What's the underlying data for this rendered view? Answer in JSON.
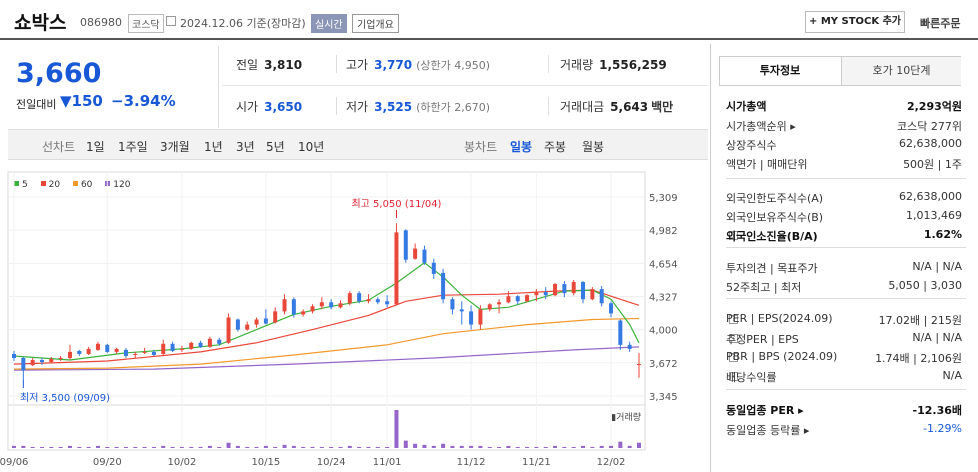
{
  "header": {
    "name": "쇼박스",
    "code": "086980",
    "market": "코스닥",
    "date": "2024.12.06 기준(장마감)",
    "realtime": "실시간",
    "overview": "기업개요",
    "mystock": "+ MY STOCK 추가",
    "quick_order": "빠른주문"
  },
  "price": {
    "current": "3,660",
    "label": "전일대비",
    "change": "▼150",
    "rate": "−3.94%"
  },
  "stats": {
    "prev_k": "전일",
    "prev_v": "3,810",
    "high_k": "고가",
    "high_v": "3,770",
    "high_limit": "(상한가 4,950)",
    "volume_k": "거래량",
    "volume_v": "1,556,259",
    "open_k": "시가",
    "open_v": "3,650",
    "low_k": "저가",
    "low_v": "3,525",
    "low_limit": "(하한가 2,670)",
    "amount_k": "거래대금",
    "amount_v": "5,643",
    "amount_unit": "백만"
  },
  "periods": {
    "label": "선차트",
    "items": [
      "1일",
      "1주일",
      "3개월",
      "1년",
      "3년",
      "5년",
      "10년"
    ],
    "candle_label": "봉차트",
    "candle_items": [
      "일봉",
      "주봉",
      "월봉"
    ],
    "candle_active": "일봉"
  },
  "chart_data": {
    "type": "candlestick",
    "legend": [
      {
        "name": "5",
        "color": "#3bb13b"
      },
      {
        "name": "20",
        "color": "#e8473a"
      },
      {
        "name": "60",
        "color": "#f2992b"
      },
      {
        "name": "120",
        "color": "#9466c9"
      }
    ],
    "y_ticks": [
      "5,309",
      "4,982",
      "4,654",
      "4,327",
      "4,000",
      "3,672",
      "3,345"
    ],
    "ylim": [
      3345,
      5309
    ],
    "x_ticks": [
      "09/06",
      "09/20",
      "10/02",
      "10/15",
      "10/24",
      "11/01",
      "11/12",
      "11/21",
      "12/02"
    ],
    "annotations": {
      "high": "최고 5,050 (11/04)",
      "low": "최저 3,500 (09/09)"
    },
    "volume_label": "거래량",
    "up_color": "#e8473a",
    "down_color": "#3579e3",
    "candles": [
      {
        "o": 3760,
        "h": 3790,
        "l": 3690,
        "c": 3720
      },
      {
        "o": 3720,
        "h": 3730,
        "l": 3500,
        "c": 3600
      },
      {
        "o": 3650,
        "h": 3720,
        "l": 3640,
        "c": 3700
      },
      {
        "o": 3700,
        "h": 3720,
        "l": 3650,
        "c": 3680
      },
      {
        "o": 3680,
        "h": 3730,
        "l": 3670,
        "c": 3710
      },
      {
        "o": 3710,
        "h": 3740,
        "l": 3690,
        "c": 3720
      },
      {
        "o": 3720,
        "h": 3850,
        "l": 3700,
        "c": 3780
      },
      {
        "o": 3790,
        "h": 3800,
        "l": 3740,
        "c": 3760
      },
      {
        "o": 3760,
        "h": 3830,
        "l": 3750,
        "c": 3810
      },
      {
        "o": 3800,
        "h": 3880,
        "l": 3790,
        "c": 3860
      },
      {
        "o": 3850,
        "h": 3860,
        "l": 3770,
        "c": 3780
      },
      {
        "o": 3780,
        "h": 3820,
        "l": 3760,
        "c": 3810
      },
      {
        "o": 3800,
        "h": 3820,
        "l": 3720,
        "c": 3740
      },
      {
        "o": 3750,
        "h": 3780,
        "l": 3720,
        "c": 3760
      },
      {
        "o": 3770,
        "h": 3820,
        "l": 3760,
        "c": 3780
      },
      {
        "o": 3780,
        "h": 3800,
        "l": 3740,
        "c": 3750
      },
      {
        "o": 3760,
        "h": 3900,
        "l": 3750,
        "c": 3860
      },
      {
        "o": 3860,
        "h": 3880,
        "l": 3780,
        "c": 3790
      },
      {
        "o": 3800,
        "h": 3840,
        "l": 3780,
        "c": 3810
      },
      {
        "o": 3810,
        "h": 3880,
        "l": 3800,
        "c": 3870
      },
      {
        "o": 3870,
        "h": 3890,
        "l": 3820,
        "c": 3830
      },
      {
        "o": 3830,
        "h": 3930,
        "l": 3820,
        "c": 3910
      },
      {
        "o": 3900,
        "h": 3920,
        "l": 3840,
        "c": 3860
      },
      {
        "o": 3870,
        "h": 4160,
        "l": 3860,
        "c": 4120
      },
      {
        "o": 4100,
        "h": 4110,
        "l": 3980,
        "c": 4000
      },
      {
        "o": 4000,
        "h": 4080,
        "l": 3990,
        "c": 4050
      },
      {
        "o": 4050,
        "h": 4120,
        "l": 4020,
        "c": 4100
      },
      {
        "o": 4110,
        "h": 4200,
        "l": 4050,
        "c": 4060
      },
      {
        "o": 4070,
        "h": 4220,
        "l": 4060,
        "c": 4180
      },
      {
        "o": 4180,
        "h": 4350,
        "l": 4150,
        "c": 4300
      },
      {
        "o": 4300,
        "h": 4320,
        "l": 4120,
        "c": 4150
      },
      {
        "o": 4150,
        "h": 4200,
        "l": 4130,
        "c": 4180
      },
      {
        "o": 4180,
        "h": 4250,
        "l": 4160,
        "c": 4230
      },
      {
        "o": 4230,
        "h": 4320,
        "l": 4200,
        "c": 4270
      },
      {
        "o": 4270,
        "h": 4300,
        "l": 4200,
        "c": 4220
      },
      {
        "o": 4220,
        "h": 4290,
        "l": 4210,
        "c": 4260
      },
      {
        "o": 4260,
        "h": 4380,
        "l": 4240,
        "c": 4360
      },
      {
        "o": 4360,
        "h": 4380,
        "l": 4260,
        "c": 4280
      },
      {
        "o": 4280,
        "h": 4350,
        "l": 4260,
        "c": 4300
      },
      {
        "o": 4300,
        "h": 4320,
        "l": 4250,
        "c": 4270
      },
      {
        "o": 4280,
        "h": 4340,
        "l": 4220,
        "c": 4250
      },
      {
        "o": 4250,
        "h": 5050,
        "l": 4240,
        "c": 4960
      },
      {
        "o": 4980,
        "h": 4990,
        "l": 4660,
        "c": 4690
      },
      {
        "o": 4700,
        "h": 4850,
        "l": 4690,
        "c": 4800
      },
      {
        "o": 4790,
        "h": 4830,
        "l": 4640,
        "c": 4660
      },
      {
        "o": 4660,
        "h": 4700,
        "l": 4500,
        "c": 4550
      },
      {
        "o": 4560,
        "h": 4600,
        "l": 4260,
        "c": 4300
      },
      {
        "o": 4300,
        "h": 4320,
        "l": 4150,
        "c": 4200
      },
      {
        "o": 4200,
        "h": 4280,
        "l": 4050,
        "c": 4180
      },
      {
        "o": 4180,
        "h": 4240,
        "l": 4000,
        "c": 4050
      },
      {
        "o": 4050,
        "h": 4240,
        "l": 4000,
        "c": 4200
      },
      {
        "o": 4200,
        "h": 4260,
        "l": 4180,
        "c": 4250
      },
      {
        "o": 4250,
        "h": 4300,
        "l": 4160,
        "c": 4270
      },
      {
        "o": 4270,
        "h": 4380,
        "l": 4260,
        "c": 4330
      },
      {
        "o": 4330,
        "h": 4340,
        "l": 4250,
        "c": 4280
      },
      {
        "o": 4280,
        "h": 4350,
        "l": 4270,
        "c": 4340
      },
      {
        "o": 4340,
        "h": 4400,
        "l": 4280,
        "c": 4370
      },
      {
        "o": 4370,
        "h": 4420,
        "l": 4300,
        "c": 4340
      },
      {
        "o": 4340,
        "h": 4460,
        "l": 4330,
        "c": 4450
      },
      {
        "o": 4450,
        "h": 4480,
        "l": 4320,
        "c": 4360
      },
      {
        "o": 4360,
        "h": 4490,
        "l": 4340,
        "c": 4470
      },
      {
        "o": 4470,
        "h": 4480,
        "l": 4260,
        "c": 4300
      },
      {
        "o": 4300,
        "h": 4420,
        "l": 4290,
        "c": 4400
      },
      {
        "o": 4400,
        "h": 4430,
        "l": 4230,
        "c": 4260
      },
      {
        "o": 4260,
        "h": 4280,
        "l": 4120,
        "c": 4160
      },
      {
        "o": 4090,
        "h": 4100,
        "l": 3800,
        "c": 3850
      },
      {
        "o": 3850,
        "h": 3880,
        "l": 3780,
        "c": 3810
      },
      {
        "o": 3650,
        "h": 3770,
        "l": 3525,
        "c": 3660
      }
    ],
    "ma5": [
      [
        0,
        3740
      ],
      [
        6,
        3700
      ],
      [
        12,
        3770
      ],
      [
        18,
        3810
      ],
      [
        22,
        3850
      ],
      [
        26,
        4000
      ],
      [
        30,
        4150
      ],
      [
        34,
        4230
      ],
      [
        38,
        4290
      ],
      [
        41,
        4460
      ],
      [
        44,
        4660
      ],
      [
        46,
        4520
      ],
      [
        48,
        4340
      ],
      [
        50,
        4200
      ],
      [
        53,
        4220
      ],
      [
        56,
        4300
      ],
      [
        59,
        4380
      ],
      [
        62,
        4390
      ],
      [
        64,
        4300
      ],
      [
        66,
        4050
      ],
      [
        67,
        3870
      ]
    ],
    "ma20": [
      [
        0,
        3660
      ],
      [
        10,
        3690
      ],
      [
        20,
        3780
      ],
      [
        26,
        3870
      ],
      [
        32,
        4000
      ],
      [
        38,
        4140
      ],
      [
        42,
        4280
      ],
      [
        46,
        4340
      ],
      [
        52,
        4350
      ],
      [
        58,
        4380
      ],
      [
        62,
        4390
      ],
      [
        64,
        4330
      ],
      [
        67,
        4240
      ]
    ],
    "ma60": [
      [
        0,
        3610
      ],
      [
        10,
        3620
      ],
      [
        20,
        3660
      ],
      [
        30,
        3750
      ],
      [
        40,
        3850
      ],
      [
        46,
        3960
      ],
      [
        55,
        4050
      ],
      [
        62,
        4100
      ],
      [
        67,
        4110
      ]
    ],
    "ma120": [
      [
        0,
        3600
      ],
      [
        15,
        3610
      ],
      [
        30,
        3660
      ],
      [
        45,
        3720
      ],
      [
        60,
        3800
      ],
      [
        67,
        3830
      ]
    ],
    "volumes": [
      2,
      2,
      1,
      1,
      1,
      1,
      2,
      1,
      1,
      2,
      1,
      1,
      1,
      1,
      1,
      1,
      2,
      1,
      1,
      1,
      1,
      2,
      1,
      5,
      2,
      1,
      1,
      2,
      1,
      3,
      2,
      1,
      1,
      1,
      1,
      1,
      2,
      1,
      1,
      1,
      1,
      36,
      7,
      4,
      3,
      2,
      4,
      2,
      2,
      2,
      2,
      1,
      1,
      2,
      1,
      1,
      1,
      1,
      2,
      1,
      1,
      2,
      1,
      2,
      2,
      6,
      2,
      5
    ]
  },
  "right_panel": {
    "tabs": [
      "투자정보",
      "호가 10단계"
    ],
    "rows": [
      {
        "k": "시가총액",
        "v": "2,293억원",
        "bold": true
      },
      {
        "k": "시가총액순위 ▸",
        "v": "코스닥 277위"
      },
      {
        "k": "상장주식수",
        "v": "62,638,000"
      },
      {
        "k": "액면가 | 매매단위",
        "v": "500원 | 1주"
      },
      {
        "k": "외국인한도주식수(A)",
        "v": "62,638,000"
      },
      {
        "k": "외국인보유주식수(B)",
        "v": "1,013,469"
      },
      {
        "k": "외국인소진율(B/A)",
        "v": "1.62%",
        "bold": true,
        "q": true
      },
      {
        "k": "투자의견 | 목표주가",
        "v": "N/A | N/A"
      },
      {
        "k": "52주최고 | 최저",
        "v": "5,050 | 3,030"
      },
      {
        "k": "PER | EPS(2024.09)",
        "v": "17.02배 | 215원",
        "q": true
      },
      {
        "k": "추정PER | EPS",
        "v": "N/A | N/A",
        "q": true
      },
      {
        "k": "PBR | BPS (2024.09)",
        "v": "1.74배 | 2,106원",
        "q": true
      },
      {
        "k": "배당수익률",
        "v": "N/A",
        "q": true
      },
      {
        "k": "동일업종 PER ▸",
        "v": "-12.36배",
        "bold": true
      },
      {
        "k": "동일업종 등락률 ▸",
        "v": "-1.29%",
        "blue": true
      }
    ]
  }
}
